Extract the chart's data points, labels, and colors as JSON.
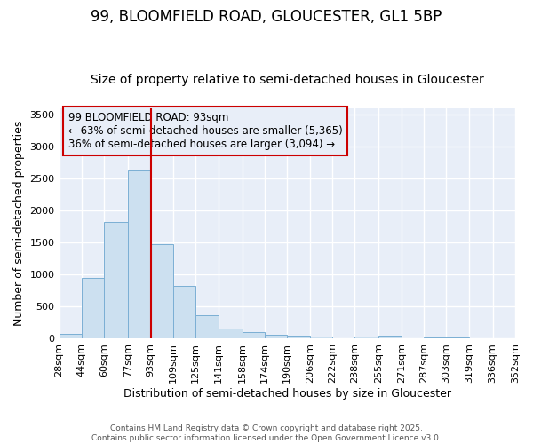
{
  "title": "99, BLOOMFIELD ROAD, GLOUCESTER, GL1 5BP",
  "subtitle": "Size of property relative to semi-detached houses in Gloucester",
  "xlabel": "Distribution of semi-detached houses by size in Gloucester",
  "ylabel": "Number of semi-detached properties",
  "bin_edges": [
    28,
    44,
    60,
    77,
    93,
    109,
    125,
    141,
    158,
    174,
    190,
    206,
    222,
    238,
    255,
    271,
    287,
    303,
    319,
    336,
    352
  ],
  "bar_heights": [
    80,
    950,
    1820,
    2630,
    1480,
    820,
    370,
    165,
    110,
    55,
    45,
    30,
    0,
    30,
    50,
    0,
    20,
    25,
    0,
    0
  ],
  "bar_color": "#cce0f0",
  "bar_edgecolor": "#7bafd4",
  "vline_x": 93,
  "vline_color": "#cc0000",
  "annotation_text_line1": "99 BLOOMFIELD ROAD: 93sqm",
  "annotation_text_line2": "← 63% of semi-detached houses are smaller (5,365)",
  "annotation_text_line3": "36% of semi-detached houses are larger (3,094) →",
  "box_edgecolor": "#cc0000",
  "ylim": [
    0,
    3600
  ],
  "yticks": [
    0,
    500,
    1000,
    1500,
    2000,
    2500,
    3000,
    3500
  ],
  "figure_bg": "#ffffff",
  "plot_bg": "#e8eef8",
  "grid_color": "#ffffff",
  "title_fontsize": 12,
  "subtitle_fontsize": 10,
  "label_fontsize": 9,
  "annot_fontsize": 8.5,
  "tick_fontsize": 8,
  "footer_text": "Contains HM Land Registry data © Crown copyright and database right 2025.\nContains public sector information licensed under the Open Government Licence v3.0."
}
